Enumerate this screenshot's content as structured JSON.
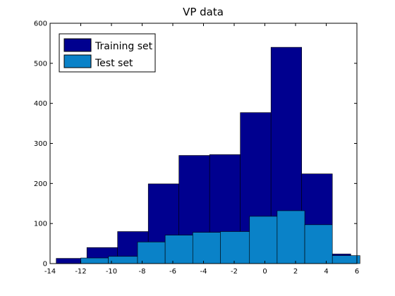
{
  "chart_data": {
    "type": "bar",
    "title": "VP data",
    "xlim": [
      -14,
      6
    ],
    "ylim": [
      0,
      600
    ],
    "xticks": [
      -14,
      -12,
      -10,
      -8,
      -6,
      -4,
      -2,
      0,
      2,
      4,
      6
    ],
    "yticks": [
      0,
      100,
      200,
      300,
      400,
      500,
      600
    ],
    "legend_position": "top-left",
    "series": [
      {
        "name": "Training set",
        "color": "#00008f",
        "bins": [
          {
            "x0": -13.6,
            "x1": -11.6,
            "value": 13
          },
          {
            "x0": -11.6,
            "x1": -9.6,
            "value": 40
          },
          {
            "x0": -9.6,
            "x1": -7.6,
            "value": 80
          },
          {
            "x0": -7.6,
            "x1": -5.6,
            "value": 199
          },
          {
            "x0": -5.6,
            "x1": -3.6,
            "value": 270
          },
          {
            "x0": -3.6,
            "x1": -1.6,
            "value": 272
          },
          {
            "x0": -1.6,
            "x1": 0.4,
            "value": 377
          },
          {
            "x0": 0.4,
            "x1": 2.4,
            "value": 540
          },
          {
            "x0": 2.4,
            "x1": 4.4,
            "value": 224
          },
          {
            "x0": 4.4,
            "x1": 5.6,
            "value": 24
          }
        ]
      },
      {
        "name": "Test set",
        "color": "#0a82c8",
        "bins": [
          {
            "x0": -12.0,
            "x1": -10.2,
            "value": 14
          },
          {
            "x0": -10.2,
            "x1": -8.3,
            "value": 18
          },
          {
            "x0": -8.3,
            "x1": -6.5,
            "value": 54
          },
          {
            "x0": -6.5,
            "x1": -4.7,
            "value": 71
          },
          {
            "x0": -4.7,
            "x1": -2.9,
            "value": 78
          },
          {
            "x0": -2.9,
            "x1": -1.0,
            "value": 80
          },
          {
            "x0": -1.0,
            "x1": 0.8,
            "value": 118
          },
          {
            "x0": 0.8,
            "x1": 2.6,
            "value": 132
          },
          {
            "x0": 2.6,
            "x1": 4.4,
            "value": 97
          },
          {
            "x0": 4.4,
            "x1": 6.2,
            "value": 20
          }
        ]
      }
    ]
  }
}
